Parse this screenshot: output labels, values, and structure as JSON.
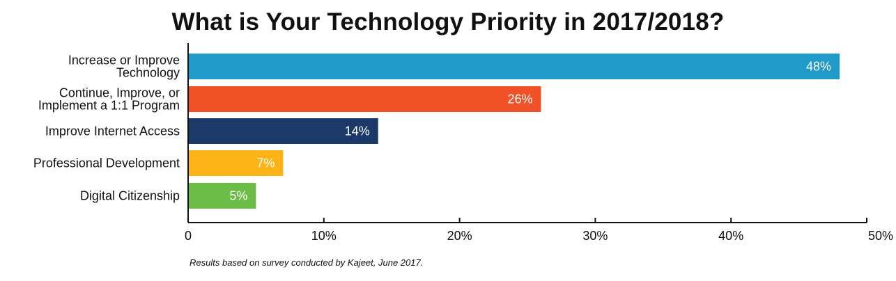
{
  "chart_data": {
    "type": "bar",
    "orientation": "horizontal",
    "title": "What is Your Technology Priority in 2017/2018?",
    "categories": [
      [
        "Increase or Improve",
        "Technology"
      ],
      [
        "Continue, Improve, or",
        "Implement a 1:1 Program"
      ],
      [
        "Improve Internet Access"
      ],
      [
        "Professional Development"
      ],
      [
        "Digital Citizenship"
      ]
    ],
    "values": [
      48,
      26,
      14,
      7,
      5
    ],
    "value_labels": [
      "48%",
      "26%",
      "14%",
      "7%",
      "5%"
    ],
    "colors": [
      "#1f9ac9",
      "#f05126",
      "#1b3a69",
      "#fcb316",
      "#6cbd45"
    ],
    "xlim": [
      0,
      50
    ],
    "xticks": [
      0,
      10,
      20,
      30,
      40,
      50
    ],
    "xtick_labels": [
      "0",
      "10%",
      "20%",
      "30%",
      "40%",
      "50%"
    ],
    "grid": false,
    "legend": "none"
  },
  "footnote": "Results based on survey conducted by Kajeet, June 2017."
}
